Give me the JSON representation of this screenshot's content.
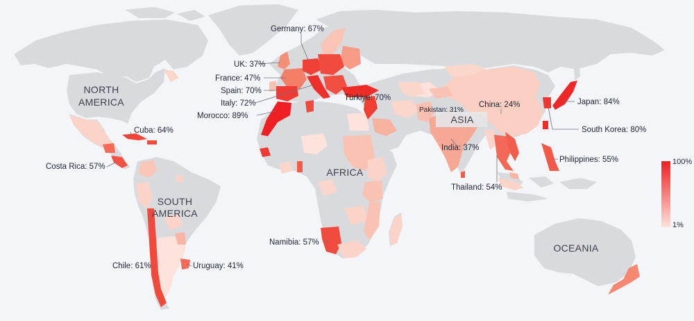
{
  "regions": {
    "north_america": [
      "NORTH",
      "AMERICA"
    ],
    "south_america": [
      "SOUTH",
      "AMERICA"
    ],
    "africa": "AFRICA",
    "asia": "ASIA",
    "oceania": "OCEANIA"
  },
  "countries": [
    {
      "id": "germany",
      "label": "Germany: 67%",
      "value": 67
    },
    {
      "id": "uk",
      "label": "UK: 37%",
      "value": 37
    },
    {
      "id": "france",
      "label": "France: 47%",
      "value": 47
    },
    {
      "id": "spain",
      "label": "Spain: 70%",
      "value": 70
    },
    {
      "id": "italy",
      "label": "Italy: 72%",
      "value": 72
    },
    {
      "id": "morocco",
      "label": "Morocco: 89%",
      "value": 89
    },
    {
      "id": "turkiye",
      "label": "Türkiye: 70%",
      "value": 70
    },
    {
      "id": "cuba",
      "label": "Cuba: 64%",
      "value": 64
    },
    {
      "id": "costa_rica",
      "label": "Costa Rica: 57%",
      "value": 57
    },
    {
      "id": "chile",
      "label": "Chile: 61%",
      "value": 61
    },
    {
      "id": "uruguay",
      "label": "Uruguay: 41%",
      "value": 41
    },
    {
      "id": "namibia",
      "label": "Namibia: 57%",
      "value": 57
    },
    {
      "id": "pakistan",
      "label": "Pakistan: 31%",
      "value": 31
    },
    {
      "id": "china",
      "label": "China: 24%",
      "value": 24
    },
    {
      "id": "india",
      "label": "India: 37%",
      "value": 37
    },
    {
      "id": "thailand",
      "label": "Thailand: 54%",
      "value": 54
    },
    {
      "id": "japan",
      "label": "Japan: 84%",
      "value": 84
    },
    {
      "id": "south_korea",
      "label": "South Korea: 80%",
      "value": 80
    },
    {
      "id": "philippines",
      "label": "Philippines: 55%",
      "value": 55
    }
  ],
  "legend": {
    "max_label": "100%",
    "min_label": "1%",
    "color_max": "#f01e23",
    "color_min": "#fde3dc"
  },
  "colors": {
    "no_data": "#d9dadd",
    "background": "#f4f5f9"
  }
}
